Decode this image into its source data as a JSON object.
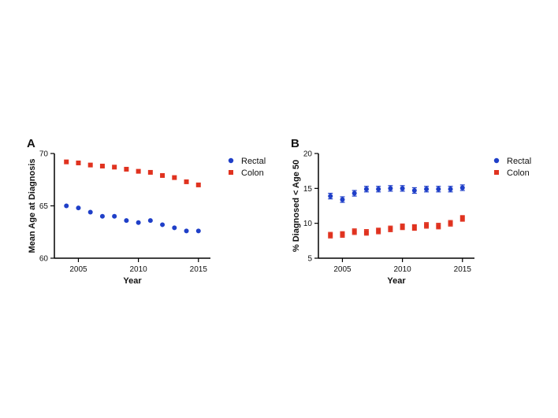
{
  "chart_data": [
    {
      "panel": "A",
      "type": "scatter",
      "xlabel": "Year",
      "ylabel": "Mean Age at Diagnosis",
      "xlim": [
        2003,
        2016
      ],
      "ylim": [
        60,
        70
      ],
      "xticks": [
        2005,
        2010,
        2015
      ],
      "yticks": [
        60,
        65,
        70
      ],
      "grid": false,
      "legend": "right",
      "series": [
        {
          "name": "Rectal",
          "marker": "circle",
          "color": "#1f3fc8",
          "points": [
            {
              "x": 2004,
              "y": 65.0
            },
            {
              "x": 2005,
              "y": 64.8
            },
            {
              "x": 2006,
              "y": 64.4
            },
            {
              "x": 2007,
              "y": 64.0
            },
            {
              "x": 2008,
              "y": 64.0
            },
            {
              "x": 2009,
              "y": 63.6
            },
            {
              "x": 2010,
              "y": 63.4
            },
            {
              "x": 2011,
              "y": 63.6
            },
            {
              "x": 2012,
              "y": 63.2
            },
            {
              "x": 2013,
              "y": 62.9
            },
            {
              "x": 2014,
              "y": 62.6
            },
            {
              "x": 2015,
              "y": 62.6
            }
          ]
        },
        {
          "name": "Colon",
          "marker": "square",
          "color": "#e0321f",
          "points": [
            {
              "x": 2004,
              "y": 69.2
            },
            {
              "x": 2005,
              "y": 69.1
            },
            {
              "x": 2006,
              "y": 68.9
            },
            {
              "x": 2007,
              "y": 68.8
            },
            {
              "x": 2008,
              "y": 68.7
            },
            {
              "x": 2009,
              "y": 68.5
            },
            {
              "x": 2010,
              "y": 68.3
            },
            {
              "x": 2011,
              "y": 68.2
            },
            {
              "x": 2012,
              "y": 67.9
            },
            {
              "x": 2013,
              "y": 67.7
            },
            {
              "x": 2014,
              "y": 67.3
            },
            {
              "x": 2015,
              "y": 67.0
            }
          ]
        }
      ]
    },
    {
      "panel": "B",
      "type": "scatter",
      "xlabel": "Year",
      "ylabel": "% Diagnosed < Age 50",
      "xlim": [
        2003,
        2016
      ],
      "ylim": [
        5,
        20
      ],
      "xticks": [
        2005,
        2010,
        2015
      ],
      "yticks": [
        5,
        10,
        15,
        20
      ],
      "grid": false,
      "legend": "right",
      "error_bars": true,
      "series": [
        {
          "name": "Rectal",
          "marker": "circle",
          "color": "#1f3fc8",
          "points": [
            {
              "x": 2004,
              "y": 13.9,
              "err": 0.4
            },
            {
              "x": 2005,
              "y": 13.4,
              "err": 0.4
            },
            {
              "x": 2006,
              "y": 14.3,
              "err": 0.4
            },
            {
              "x": 2007,
              "y": 14.9,
              "err": 0.4
            },
            {
              "x": 2008,
              "y": 14.9,
              "err": 0.4
            },
            {
              "x": 2009,
              "y": 15.0,
              "err": 0.4
            },
            {
              "x": 2010,
              "y": 15.0,
              "err": 0.4
            },
            {
              "x": 2011,
              "y": 14.7,
              "err": 0.4
            },
            {
              "x": 2012,
              "y": 14.9,
              "err": 0.4
            },
            {
              "x": 2013,
              "y": 14.9,
              "err": 0.4
            },
            {
              "x": 2014,
              "y": 14.9,
              "err": 0.4
            },
            {
              "x": 2015,
              "y": 15.1,
              "err": 0.4
            }
          ]
        },
        {
          "name": "Colon",
          "marker": "square",
          "color": "#e0321f",
          "points": [
            {
              "x": 2004,
              "y": 8.3,
              "err": 0.4
            },
            {
              "x": 2005,
              "y": 8.4,
              "err": 0.4
            },
            {
              "x": 2006,
              "y": 8.8,
              "err": 0.4
            },
            {
              "x": 2007,
              "y": 8.7,
              "err": 0.4
            },
            {
              "x": 2008,
              "y": 8.9,
              "err": 0.4
            },
            {
              "x": 2009,
              "y": 9.2,
              "err": 0.4
            },
            {
              "x": 2010,
              "y": 9.5,
              "err": 0.4
            },
            {
              "x": 2011,
              "y": 9.4,
              "err": 0.4
            },
            {
              "x": 2012,
              "y": 9.7,
              "err": 0.4
            },
            {
              "x": 2013,
              "y": 9.6,
              "err": 0.4
            },
            {
              "x": 2014,
              "y": 10.0,
              "err": 0.4
            },
            {
              "x": 2015,
              "y": 10.7,
              "err": 0.4
            }
          ]
        }
      ]
    }
  ]
}
